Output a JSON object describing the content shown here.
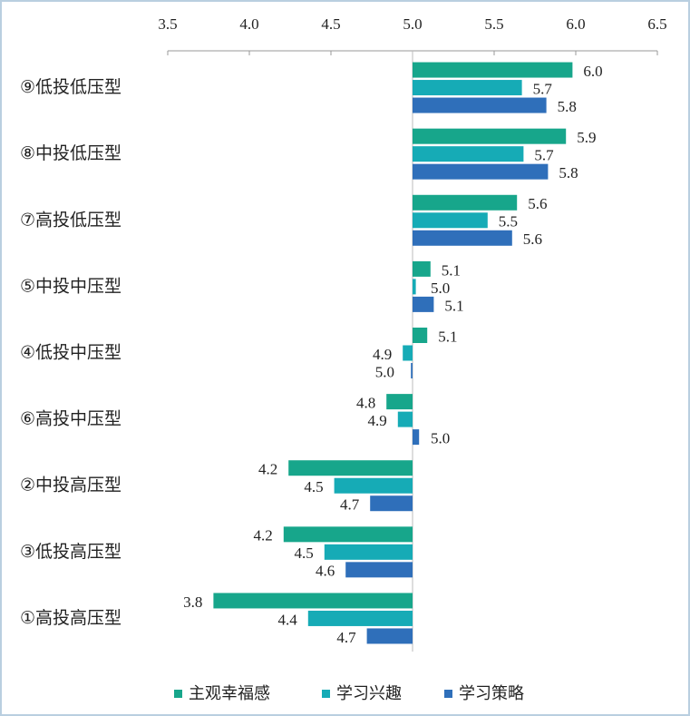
{
  "chart_data": {
    "type": "bar",
    "orientation": "horizontal",
    "base": 5,
    "categories": [
      "⑨低投低压型",
      "⑧中投低压型",
      "⑦高投低压型",
      "⑤中投中压型",
      "④低投中压型",
      "⑥高投中压型",
      "②中投高压型",
      "③低投高压型",
      "①高投高压型"
    ],
    "series": [
      {
        "name": "主观幸福感",
        "color": "#17a68b",
        "values": [
          5.98,
          5.94,
          5.64,
          5.11,
          5.09,
          4.84,
          4.24,
          4.21,
          3.78
        ],
        "value_labels": [
          "6.0",
          "5.9",
          "5.6",
          "5.1",
          "5.1",
          "4.8",
          "4.2",
          "4.2",
          "3.8"
        ]
      },
      {
        "name": "学习兴趣",
        "color": "#16abb6",
        "values": [
          5.67,
          5.68,
          5.46,
          5.02,
          4.94,
          4.91,
          4.52,
          4.46,
          4.36
        ],
        "value_labels": [
          "5.7",
          "5.7",
          "5.5",
          "5.0",
          "4.9",
          "4.9",
          "4.5",
          "4.5",
          "4.4"
        ]
      },
      {
        "name": "学习策略",
        "color": "#2f6fba",
        "values": [
          5.82,
          5.83,
          5.61,
          5.13,
          4.99,
          5.04,
          4.74,
          4.59,
          4.72
        ],
        "value_labels": [
          "5.8",
          "5.8",
          "5.6",
          "5.1",
          "5.0",
          "5.0",
          "4.7",
          "4.6",
          "4.7"
        ]
      }
    ],
    "xlim": [
      3.5,
      6.5
    ],
    "xticks": [
      3.5,
      {
        "value": 4,
        "label": "4.0"
      },
      4.5,
      {
        "value": 5,
        "label": "5.0"
      },
      5.5,
      {
        "value": 6,
        "label": "6.0"
      },
      6.5
    ],
    "legend": "bottom"
  }
}
